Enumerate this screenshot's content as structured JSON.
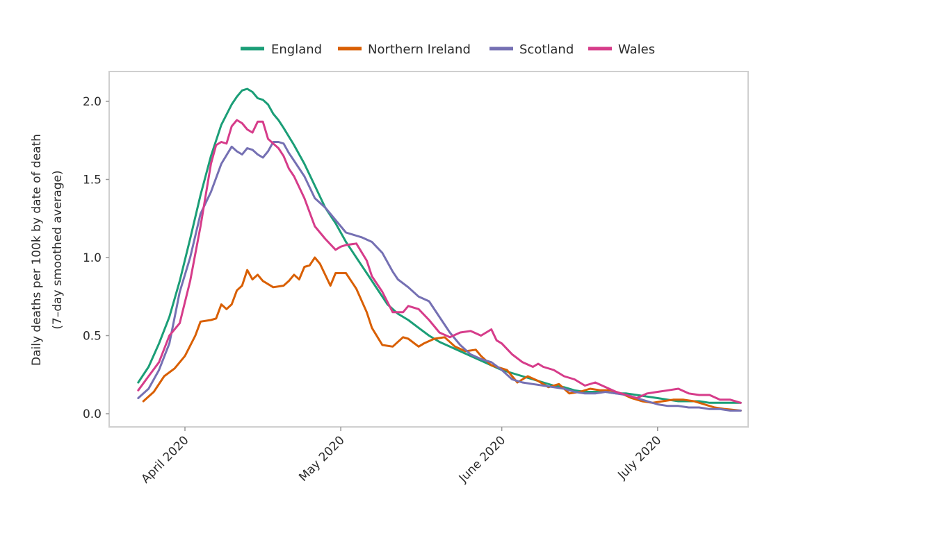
{
  "chart_data": {
    "type": "line",
    "title": "",
    "xlabel": "",
    "ylabel": [
      "Daily deaths per 100k by date of death",
      "(7–day smoothed average)"
    ],
    "ylim": [
      -0.08,
      2.2
    ],
    "yticks": [
      0.0,
      0.5,
      1.0,
      1.5,
      2.0
    ],
    "ytick_labels": [
      "0.0",
      "0.5",
      "1.0",
      "1.5",
      "2.0"
    ],
    "xlim_days_from_2020_04_01": [
      -14.6,
      108.5
    ],
    "xticks_days_from_2020_04_01": [
      0,
      30,
      61,
      91
    ],
    "xtick_labels": [
      "April 2020",
      "May 2020",
      "June 2020",
      "July 2020"
    ],
    "x_unit": "days since 2020-04-01",
    "legend_position": "top",
    "grid": false,
    "series": [
      {
        "name": "England",
        "color": "#1b9e77",
        "x": [
          -9,
          -7,
          -5,
          -3,
          -1,
          1,
          3,
          5,
          7,
          9,
          10,
          11,
          12,
          13,
          14,
          15,
          16,
          17,
          18,
          19,
          21,
          23,
          25,
          27,
          29,
          31,
          33,
          35,
          37,
          39,
          41,
          43,
          45,
          47,
          49,
          51,
          53,
          55,
          57,
          59,
          61,
          63,
          65,
          67,
          69,
          71,
          73,
          75,
          77,
          79,
          81,
          83,
          85,
          87,
          89,
          91,
          93,
          95,
          97,
          99,
          101,
          103,
          105,
          107
        ],
        "y": [
          0.2,
          0.3,
          0.45,
          0.62,
          0.85,
          1.12,
          1.4,
          1.65,
          1.85,
          1.98,
          2.03,
          2.07,
          2.08,
          2.06,
          2.02,
          2.01,
          1.98,
          1.92,
          1.88,
          1.83,
          1.72,
          1.6,
          1.46,
          1.32,
          1.22,
          1.1,
          1.0,
          0.9,
          0.8,
          0.7,
          0.64,
          0.6,
          0.55,
          0.5,
          0.46,
          0.43,
          0.4,
          0.37,
          0.34,
          0.31,
          0.28,
          0.26,
          0.24,
          0.22,
          0.2,
          0.18,
          0.17,
          0.15,
          0.14,
          0.14,
          0.14,
          0.13,
          0.13,
          0.12,
          0.11,
          0.1,
          0.09,
          0.08,
          0.08,
          0.08,
          0.07,
          0.07,
          0.07,
          0.07
        ]
      },
      {
        "name": "Northern Ireland",
        "color": "#d95f02",
        "x": [
          -8,
          -6,
          -4,
          -2,
          0,
          2,
          3,
          5,
          6,
          7,
          8,
          9,
          10,
          11,
          12,
          13,
          14,
          15,
          17,
          19,
          20,
          21,
          22,
          23,
          24,
          25,
          26,
          28,
          29,
          31,
          33,
          35,
          36,
          38,
          40,
          42,
          43,
          45,
          46,
          48,
          50,
          52,
          54,
          56,
          57,
          59,
          60,
          62,
          64,
          66,
          68,
          70,
          72,
          74,
          76,
          78,
          80,
          82,
          84,
          86,
          88,
          90,
          92,
          94,
          96,
          98,
          100,
          102,
          104,
          107
        ],
        "y": [
          0.08,
          0.14,
          0.24,
          0.29,
          0.37,
          0.5,
          0.59,
          0.6,
          0.61,
          0.7,
          0.67,
          0.7,
          0.79,
          0.82,
          0.92,
          0.86,
          0.89,
          0.85,
          0.81,
          0.82,
          0.85,
          0.89,
          0.86,
          0.94,
          0.95,
          1.0,
          0.96,
          0.82,
          0.9,
          0.9,
          0.8,
          0.65,
          0.55,
          0.44,
          0.43,
          0.49,
          0.48,
          0.43,
          0.45,
          0.48,
          0.49,
          0.43,
          0.4,
          0.41,
          0.37,
          0.31,
          0.3,
          0.28,
          0.2,
          0.24,
          0.21,
          0.17,
          0.19,
          0.13,
          0.14,
          0.16,
          0.15,
          0.15,
          0.13,
          0.1,
          0.08,
          0.07,
          0.08,
          0.09,
          0.09,
          0.08,
          0.06,
          0.04,
          0.03,
          0.02
        ]
      },
      {
        "name": "Scotland",
        "color": "#7570b3",
        "x": [
          -9,
          -7,
          -5,
          -3,
          -1,
          1,
          3,
          5,
          7,
          9,
          10,
          11,
          12,
          13,
          14,
          15,
          16,
          17,
          18,
          19,
          20,
          21,
          23,
          25,
          27,
          29,
          31,
          33,
          34,
          36,
          38,
          40,
          41,
          43,
          45,
          47,
          49,
          51,
          53,
          55,
          57,
          59,
          61,
          63,
          65,
          67,
          69,
          71,
          73,
          75,
          77,
          79,
          81,
          83,
          85,
          87,
          89,
          91,
          93,
          95,
          97,
          99,
          101,
          103,
          105,
          107
        ],
        "y": [
          0.1,
          0.16,
          0.28,
          0.45,
          0.78,
          1.0,
          1.28,
          1.42,
          1.6,
          1.71,
          1.68,
          1.66,
          1.7,
          1.69,
          1.66,
          1.64,
          1.68,
          1.74,
          1.74,
          1.73,
          1.67,
          1.62,
          1.52,
          1.38,
          1.32,
          1.24,
          1.16,
          1.14,
          1.13,
          1.1,
          1.03,
          0.91,
          0.86,
          0.81,
          0.75,
          0.72,
          0.62,
          0.52,
          0.44,
          0.38,
          0.35,
          0.33,
          0.28,
          0.22,
          0.2,
          0.19,
          0.18,
          0.17,
          0.16,
          0.14,
          0.13,
          0.13,
          0.14,
          0.13,
          0.12,
          0.1,
          0.08,
          0.06,
          0.05,
          0.05,
          0.04,
          0.04,
          0.03,
          0.03,
          0.02,
          0.02
        ]
      },
      {
        "name": "Wales",
        "color": "#d63c8a",
        "x": [
          -9,
          -7,
          -5,
          -3,
          -1,
          1,
          3,
          5,
          6,
          7,
          8,
          9,
          10,
          11,
          12,
          13,
          14,
          15,
          16,
          17,
          18,
          19,
          20,
          21,
          23,
          25,
          27,
          29,
          30,
          31,
          33,
          35,
          36,
          38,
          40,
          42,
          43,
          45,
          47,
          49,
          51,
          53,
          55,
          57,
          59,
          60,
          61,
          63,
          65,
          67,
          68,
          69,
          71,
          73,
          75,
          77,
          79,
          81,
          83,
          85,
          87,
          89,
          91,
          93,
          95,
          97,
          99,
          101,
          103,
          105,
          107
        ],
        "y": [
          0.15,
          0.24,
          0.33,
          0.5,
          0.58,
          0.85,
          1.2,
          1.6,
          1.72,
          1.74,
          1.73,
          1.84,
          1.88,
          1.86,
          1.82,
          1.8,
          1.87,
          1.87,
          1.76,
          1.73,
          1.7,
          1.65,
          1.57,
          1.52,
          1.38,
          1.2,
          1.12,
          1.05,
          1.07,
          1.08,
          1.09,
          0.98,
          0.88,
          0.78,
          0.65,
          0.65,
          0.69,
          0.67,
          0.6,
          0.52,
          0.49,
          0.52,
          0.53,
          0.5,
          0.54,
          0.47,
          0.45,
          0.38,
          0.33,
          0.3,
          0.32,
          0.3,
          0.28,
          0.24,
          0.22,
          0.18,
          0.2,
          0.17,
          0.14,
          0.12,
          0.1,
          0.13,
          0.14,
          0.15,
          0.16,
          0.13,
          0.12,
          0.12,
          0.09,
          0.09,
          0.07
        ]
      }
    ]
  }
}
